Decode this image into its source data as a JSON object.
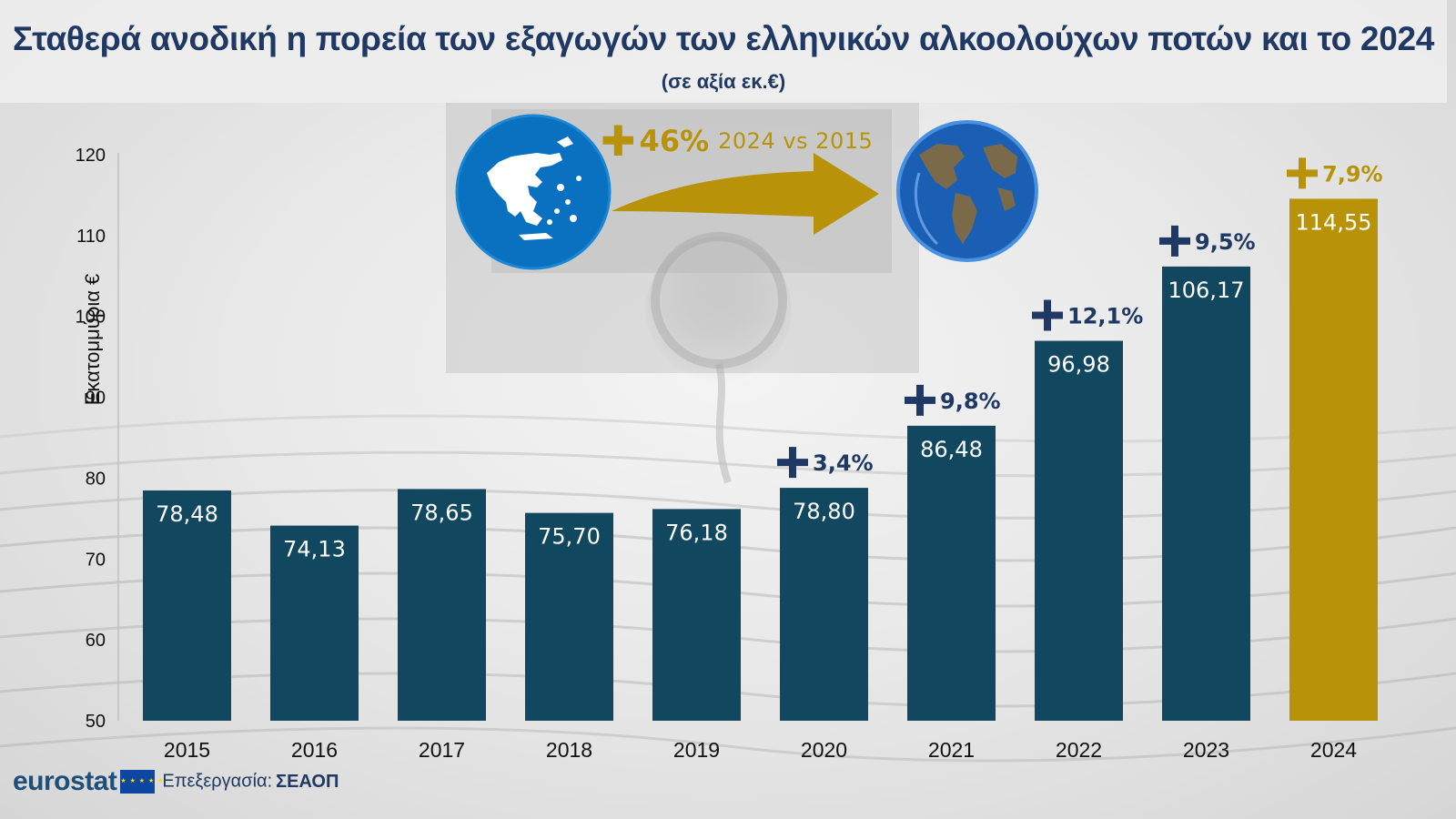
{
  "header": {
    "title": "Σταθερά ανοδική η πορεία των εξαγωγών  των ελληνικών αλκοολούχων ποτών και το 2024",
    "subtitle": "(σε αξία εκ.€)"
  },
  "overall_change": {
    "plus": "✚",
    "value": "46%",
    "comparison": "2024 vs 2015",
    "color": "#b8930a"
  },
  "source": {
    "brand": "eurostat",
    "processed_by_label": "Επεξεργασία:",
    "processed_by": "ΣΕΑΟΠ"
  },
  "icons": [
    "greece-map-icon",
    "arrow-right-icon",
    "globe-icon",
    "eu-flag-icon"
  ],
  "colors": {
    "bar": "#124760",
    "highlight_bar": "#b8930a",
    "growth_label": "#1f3864",
    "title": "#1f3864"
  },
  "chart_data": {
    "type": "bar",
    "title": "Σταθερά ανοδική η πορεία των εξαγωγών  των ελληνικών αλκοολούχων ποτών και το 2024",
    "subtitle": "(σε αξία εκ.€)",
    "xlabel": "",
    "ylabel": "Εκατομμύρια €",
    "ylim": [
      50,
      120
    ],
    "yticks": [
      50,
      60,
      70,
      80,
      90,
      100,
      110,
      120
    ],
    "grid": false,
    "categories": [
      "2015",
      "2016",
      "2017",
      "2018",
      "2019",
      "2020",
      "2021",
      "2022",
      "2023",
      "2024"
    ],
    "values": [
      78.48,
      74.13,
      78.65,
      75.7,
      76.18,
      78.8,
      86.48,
      96.98,
      106.17,
      114.55
    ],
    "value_labels": [
      "78,48",
      "74,13",
      "78,65",
      "75,70",
      "76,18",
      "78,80",
      "86,48",
      "96,98",
      "106,17",
      "114,55"
    ],
    "highlight_category": "2024",
    "annotations": [
      {
        "category": "2020",
        "text": "3,4%"
      },
      {
        "category": "2021",
        "text": "9,8%"
      },
      {
        "category": "2022",
        "text": "12,1%"
      },
      {
        "category": "2023",
        "text": "9,5%"
      },
      {
        "category": "2024",
        "text": "7,9%"
      }
    ]
  }
}
